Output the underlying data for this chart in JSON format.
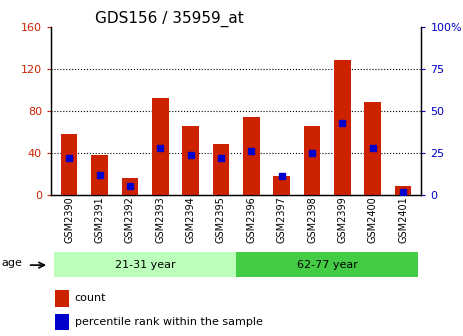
{
  "title": "GDS156 / 35959_at",
  "samples": [
    "GSM2390",
    "GSM2391",
    "GSM2392",
    "GSM2393",
    "GSM2394",
    "GSM2395",
    "GSM2396",
    "GSM2397",
    "GSM2398",
    "GSM2399",
    "GSM2400",
    "GSM2401"
  ],
  "counts": [
    58,
    38,
    16,
    92,
    66,
    48,
    74,
    18,
    66,
    128,
    88,
    8
  ],
  "percentiles": [
    22,
    12,
    5,
    28,
    24,
    22,
    26,
    11,
    25,
    43,
    28,
    2
  ],
  "ylim_left": [
    0,
    160
  ],
  "ylim_right": [
    0,
    100
  ],
  "yticks_left": [
    0,
    40,
    80,
    120,
    160
  ],
  "yticks_right": [
    0,
    25,
    50,
    75,
    100
  ],
  "bar_color": "#cc2200",
  "marker_color": "#0000cc",
  "groups": [
    {
      "label": "21-31 year",
      "start": 0,
      "end": 6,
      "color": "#bbffbb"
    },
    {
      "label": "62-77 year",
      "start": 6,
      "end": 12,
      "color": "#44cc44"
    }
  ],
  "group_label": "age",
  "background_color": "#ffffff",
  "tick_label_color_left": "#cc2200",
  "tick_label_color_right": "#0000cc",
  "title_fontsize": 11,
  "bar_width": 0.55,
  "grid_ticks": [
    40,
    80,
    120
  ],
  "right_ytick_labels": [
    "0",
    "25",
    "50",
    "75",
    "100%"
  ]
}
